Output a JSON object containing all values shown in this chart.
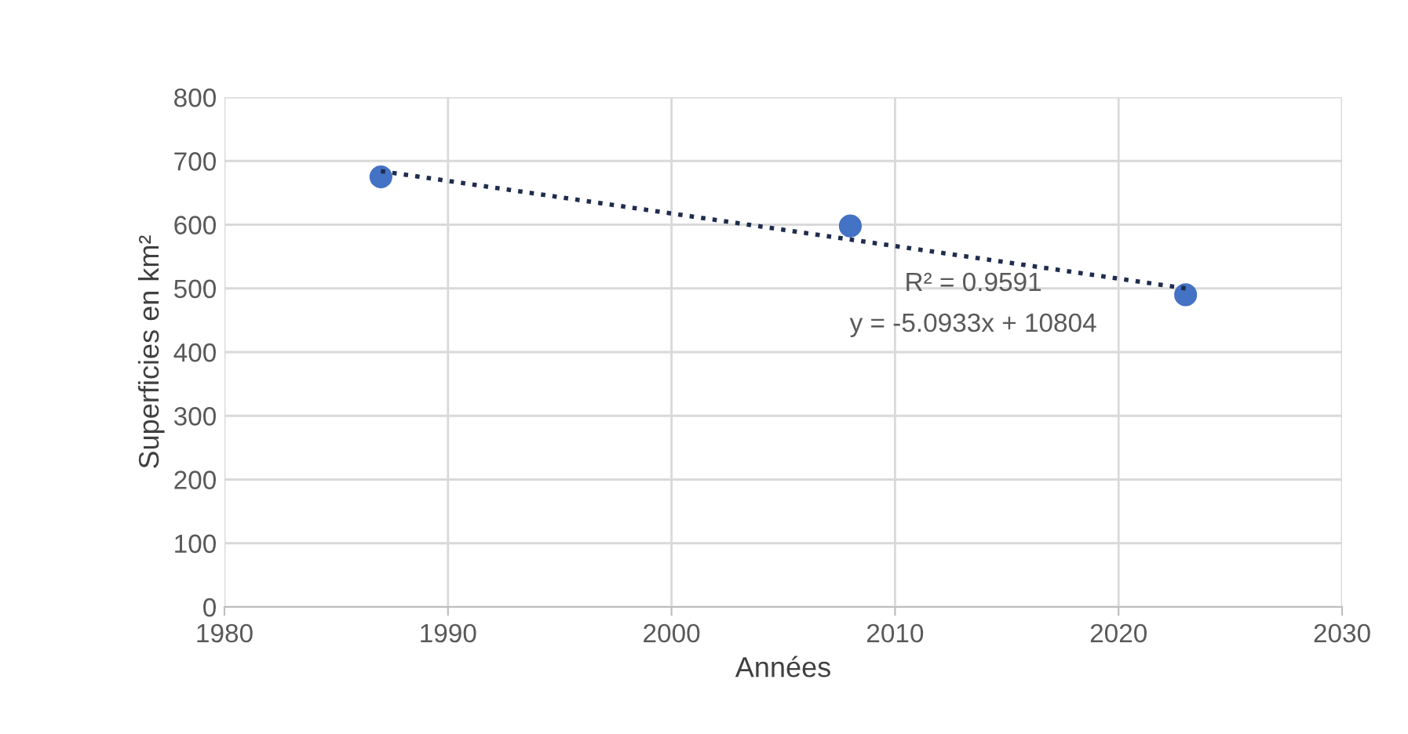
{
  "chart_data": {
    "type": "scatter",
    "xlabel": "Années",
    "ylabel": "Superficies en km²",
    "x": [
      1987,
      2008,
      2023
    ],
    "series": [
      {
        "color": "#4472c4",
        "marker": "circle",
        "values": [
          675,
          598,
          490
        ]
      },
      {
        "type": "line",
        "color": "#1f2d4d",
        "line_style": "dotted",
        "marker": "none",
        "x": [
          1987,
          2023
        ],
        "values": [
          684,
          500
        ]
      }
    ],
    "xlim": [
      1980,
      2030
    ],
    "xticks": [
      1980,
      1990,
      2000,
      2010,
      2020,
      2030
    ],
    "ylim": [
      0,
      800
    ],
    "yticks": [
      0,
      100,
      200,
      300,
      400,
      500,
      600,
      700,
      800
    ],
    "grid": true,
    "annotations": [
      "R² = 0.9591",
      "y = -5.0933x + 10804"
    ]
  }
}
